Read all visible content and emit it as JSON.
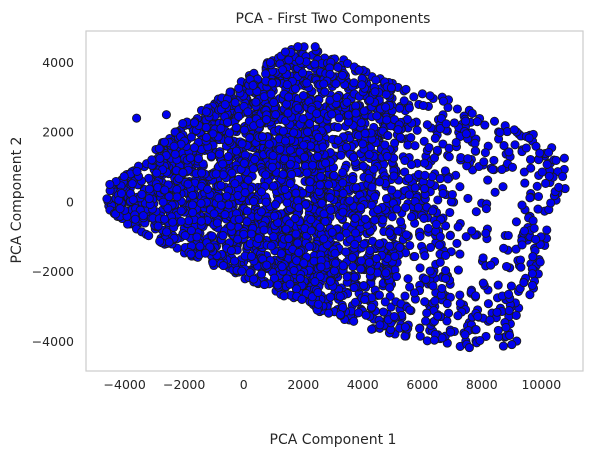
{
  "chart_data": {
    "type": "scatter",
    "title": "PCA - First Two Components",
    "xlabel": "PCA Component 1",
    "ylabel": "PCA Component 2",
    "xlim": [
      -5300,
      11400
    ],
    "ylim": [
      -4850,
      4900
    ],
    "xticks": [
      -4000,
      -2000,
      0,
      2000,
      4000,
      6000,
      8000,
      10000
    ],
    "yticks": [
      -4000,
      -2000,
      0,
      2000,
      4000
    ],
    "xtick_labels": [
      "−4000",
      "−2000",
      "0",
      "2000",
      "4000",
      "6000",
      "8000",
      "10000"
    ],
    "ytick_labels": [
      "−4000",
      "−2000",
      "0",
      "2000",
      "4000"
    ],
    "grid": false,
    "marker_color": "#0000ee",
    "edge_color": "#1a1a1a",
    "region_polygon": [
      [
        -4700,
        -200
      ],
      [
        -4500,
        500
      ],
      [
        -3500,
        1100
      ],
      [
        -2000,
        2300
      ],
      [
        -500,
        3200
      ],
      [
        800,
        4000
      ],
      [
        1800,
        4500
      ],
      [
        2600,
        4400
      ],
      [
        4500,
        3600
      ],
      [
        6500,
        3100
      ],
      [
        8500,
        2300
      ],
      [
        10200,
        1800
      ],
      [
        10800,
        1500
      ],
      [
        10800,
        300
      ],
      [
        10300,
        -1000
      ],
      [
        9700,
        -2600
      ],
      [
        9200,
        -4000
      ],
      [
        8600,
        -4400
      ],
      [
        7600,
        -4200
      ],
      [
        6000,
        -4000
      ],
      [
        4000,
        -3600
      ],
      [
        2000,
        -3000
      ],
      [
        0,
        -2200
      ],
      [
        -2500,
        -1300
      ],
      [
        -4200,
        -500
      ]
    ],
    "point_count": 3200,
    "outliers": [
      [
        -3600,
        2400
      ],
      [
        -2600,
        2500
      ],
      [
        1400,
        4300
      ],
      [
        2400,
        4450
      ],
      [
        900,
        4000
      ],
      [
        -4500,
        500
      ]
    ]
  }
}
